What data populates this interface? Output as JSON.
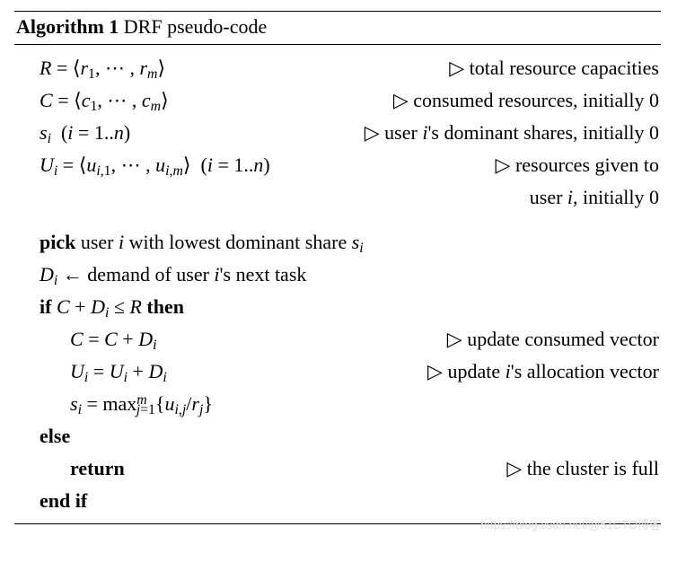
{
  "algorithm": {
    "number": "Algorithm 1",
    "title": "DRF pseudo-code",
    "declarations": [
      {
        "lhs": "R = ⟨r₁, ⋯ , rₘ⟩",
        "comment": "total resource capacities"
      },
      {
        "lhs": "C = ⟨c₁, ⋯ , cₘ⟩",
        "comment": "consumed resources, initially 0"
      },
      {
        "lhs": "sᵢ  (i = 1..n)",
        "comment": "user i's dominant shares, initially 0"
      },
      {
        "lhs": "Uᵢ = ⟨uᵢ,₁, ⋯ , uᵢ,ₘ⟩  (i = 1..n)",
        "comment": "resources given to",
        "comment_cont": "user i, initially 0"
      }
    ],
    "steps": {
      "pick": {
        "kw": "pick",
        "text": " user i with lowest dominant share sᵢ"
      },
      "assign_D": "Dᵢ ← demand of user i's next task",
      "if": {
        "kw": "if",
        "cond": "C + Dᵢ ≤ R",
        "then": "then"
      },
      "update_C": {
        "lhs": "C = C + Dᵢ",
        "comment": "update consumed vector"
      },
      "update_U": {
        "lhs": "Uᵢ = Uᵢ + Dᵢ",
        "comment": "update i's allocation vector"
      },
      "update_s": "sᵢ = maxⱼ₌₁ᵐ {uᵢ,ⱼ / rⱼ}",
      "else": "else",
      "return": {
        "kw": "return",
        "comment": "the cluster is full"
      },
      "endif": "end if"
    }
  },
  "watermark": "https://blog.csdn.net/@51CTO博客"
}
